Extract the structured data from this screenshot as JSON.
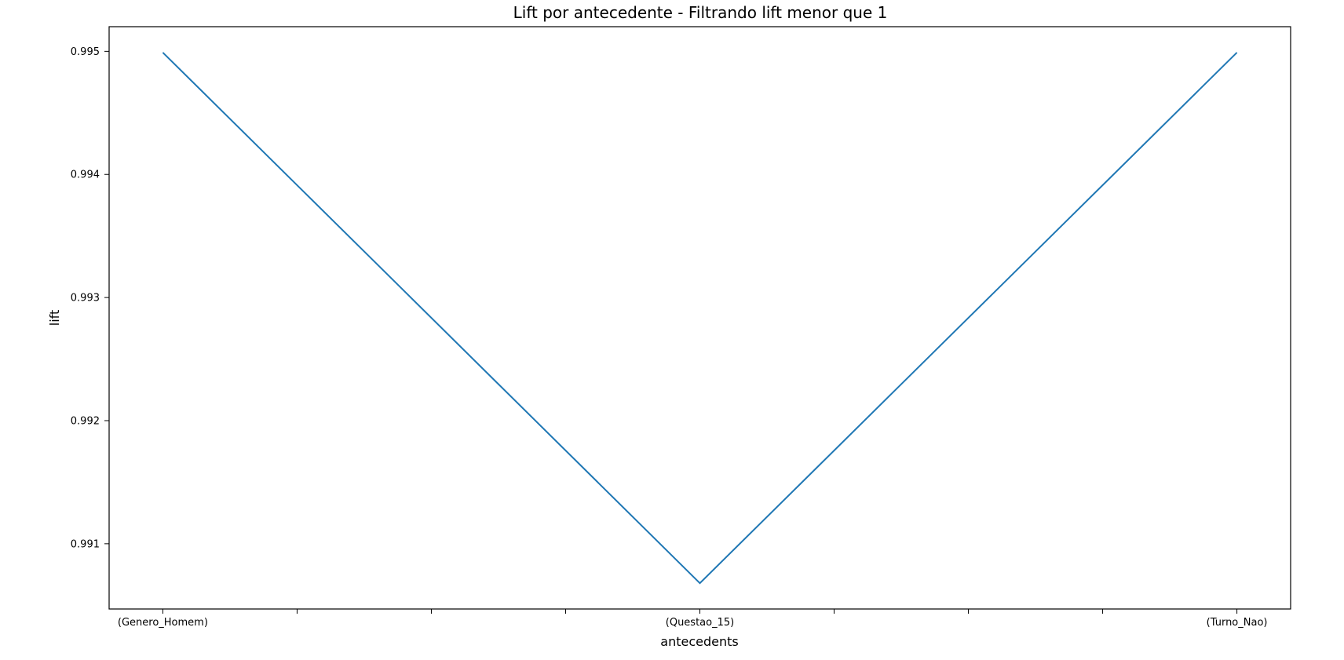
{
  "chart_data": {
    "type": "line",
    "title": "Lift por antecedente - Filtrando lift menor que 1",
    "xlabel": "antecedents",
    "ylabel": "lift",
    "x_range": [
      -0.1,
      2.1
    ],
    "categories": [
      "(Genero_Homem)",
      "(Questao_15)",
      "(Turno_Nao)"
    ],
    "x_minor_ticks": [
      0.25,
      0.5,
      0.75,
      1.25,
      1.5,
      1.75
    ],
    "series": [
      {
        "values": [
          0.99499,
          0.99068,
          0.99499
        ],
        "color": "#1f77b4"
      }
    ],
    "ylim": [
      0.99047,
      0.9952
    ],
    "yticks": [
      0.991,
      0.992,
      0.993,
      0.994,
      0.995
    ],
    "grid": false,
    "legend": false
  }
}
